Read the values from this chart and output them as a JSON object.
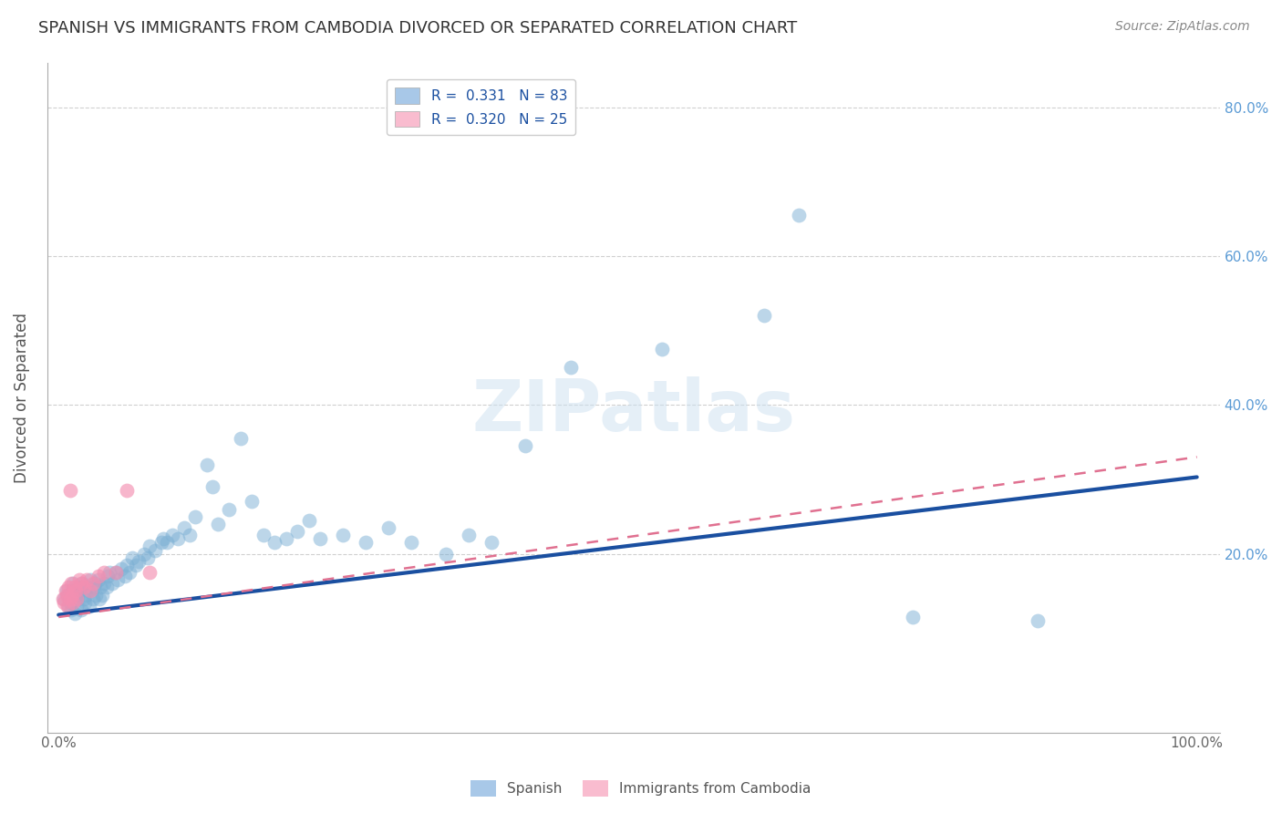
{
  "title": "SPANISH VS IMMIGRANTS FROM CAMBODIA DIVORCED OR SEPARATED CORRELATION CHART",
  "source": "Source: ZipAtlas.com",
  "ylabel": "Divorced or Separated",
  "legend_label_spanish": "Spanish",
  "legend_label_cambodia": "Immigrants from Cambodia",
  "blue_color": "#7bafd4",
  "pink_color": "#f48fb1",
  "trendline_blue": "#1a4fa0",
  "trendline_pink": "#e07090",
  "watermark": "ZIPatlas",
  "title_fontsize": 13,
  "background_color": "#ffffff",
  "xlim": [
    0.0,
    1.0
  ],
  "ylim": [
    0.0,
    0.85
  ],
  "blue_intercept": 0.118,
  "blue_slope": 0.185,
  "pink_intercept": 0.115,
  "pink_slope": 0.215,
  "blue_scatter_x": [
    0.005,
    0.007,
    0.008,
    0.009,
    0.01,
    0.011,
    0.012,
    0.013,
    0.014,
    0.015,
    0.016,
    0.017,
    0.018,
    0.019,
    0.02,
    0.021,
    0.022,
    0.023,
    0.024,
    0.025,
    0.026,
    0.027,
    0.028,
    0.03,
    0.031,
    0.032,
    0.033,
    0.035,
    0.036,
    0.037,
    0.038,
    0.04,
    0.042,
    0.043,
    0.045,
    0.047,
    0.05,
    0.052,
    0.055,
    0.058,
    0.06,
    0.062,
    0.065,
    0.068,
    0.07,
    0.075,
    0.078,
    0.08,
    0.085,
    0.09,
    0.092,
    0.095,
    0.1,
    0.105,
    0.11,
    0.115,
    0.12,
    0.13,
    0.135,
    0.14,
    0.15,
    0.16,
    0.17,
    0.18,
    0.19,
    0.2,
    0.21,
    0.22,
    0.23,
    0.25,
    0.27,
    0.29,
    0.31,
    0.34,
    0.36,
    0.38,
    0.41,
    0.45,
    0.53,
    0.62,
    0.65,
    0.75,
    0.86
  ],
  "blue_scatter_y": [
    0.14,
    0.15,
    0.145,
    0.13,
    0.135,
    0.125,
    0.15,
    0.16,
    0.12,
    0.145,
    0.13,
    0.14,
    0.15,
    0.155,
    0.125,
    0.16,
    0.14,
    0.135,
    0.145,
    0.155,
    0.15,
    0.13,
    0.165,
    0.14,
    0.155,
    0.16,
    0.145,
    0.165,
    0.14,
    0.155,
    0.145,
    0.16,
    0.155,
    0.17,
    0.175,
    0.16,
    0.175,
    0.165,
    0.18,
    0.17,
    0.185,
    0.175,
    0.195,
    0.185,
    0.19,
    0.2,
    0.195,
    0.21,
    0.205,
    0.215,
    0.22,
    0.215,
    0.225,
    0.22,
    0.235,
    0.225,
    0.25,
    0.32,
    0.29,
    0.24,
    0.26,
    0.355,
    0.27,
    0.225,
    0.215,
    0.22,
    0.23,
    0.245,
    0.22,
    0.225,
    0.215,
    0.235,
    0.215,
    0.2,
    0.225,
    0.215,
    0.345,
    0.45,
    0.475,
    0.52,
    0.655,
    0.115,
    0.11
  ],
  "pink_scatter_x": [
    0.004,
    0.005,
    0.006,
    0.007,
    0.008,
    0.009,
    0.01,
    0.011,
    0.012,
    0.013,
    0.014,
    0.015,
    0.016,
    0.018,
    0.02,
    0.022,
    0.025,
    0.028,
    0.03,
    0.035,
    0.04,
    0.05,
    0.06,
    0.08,
    0.01
  ],
  "pink_scatter_y": [
    0.14,
    0.135,
    0.15,
    0.145,
    0.13,
    0.155,
    0.14,
    0.16,
    0.145,
    0.135,
    0.155,
    0.15,
    0.14,
    0.165,
    0.16,
    0.155,
    0.165,
    0.15,
    0.16,
    0.17,
    0.175,
    0.175,
    0.285,
    0.175,
    0.285
  ]
}
